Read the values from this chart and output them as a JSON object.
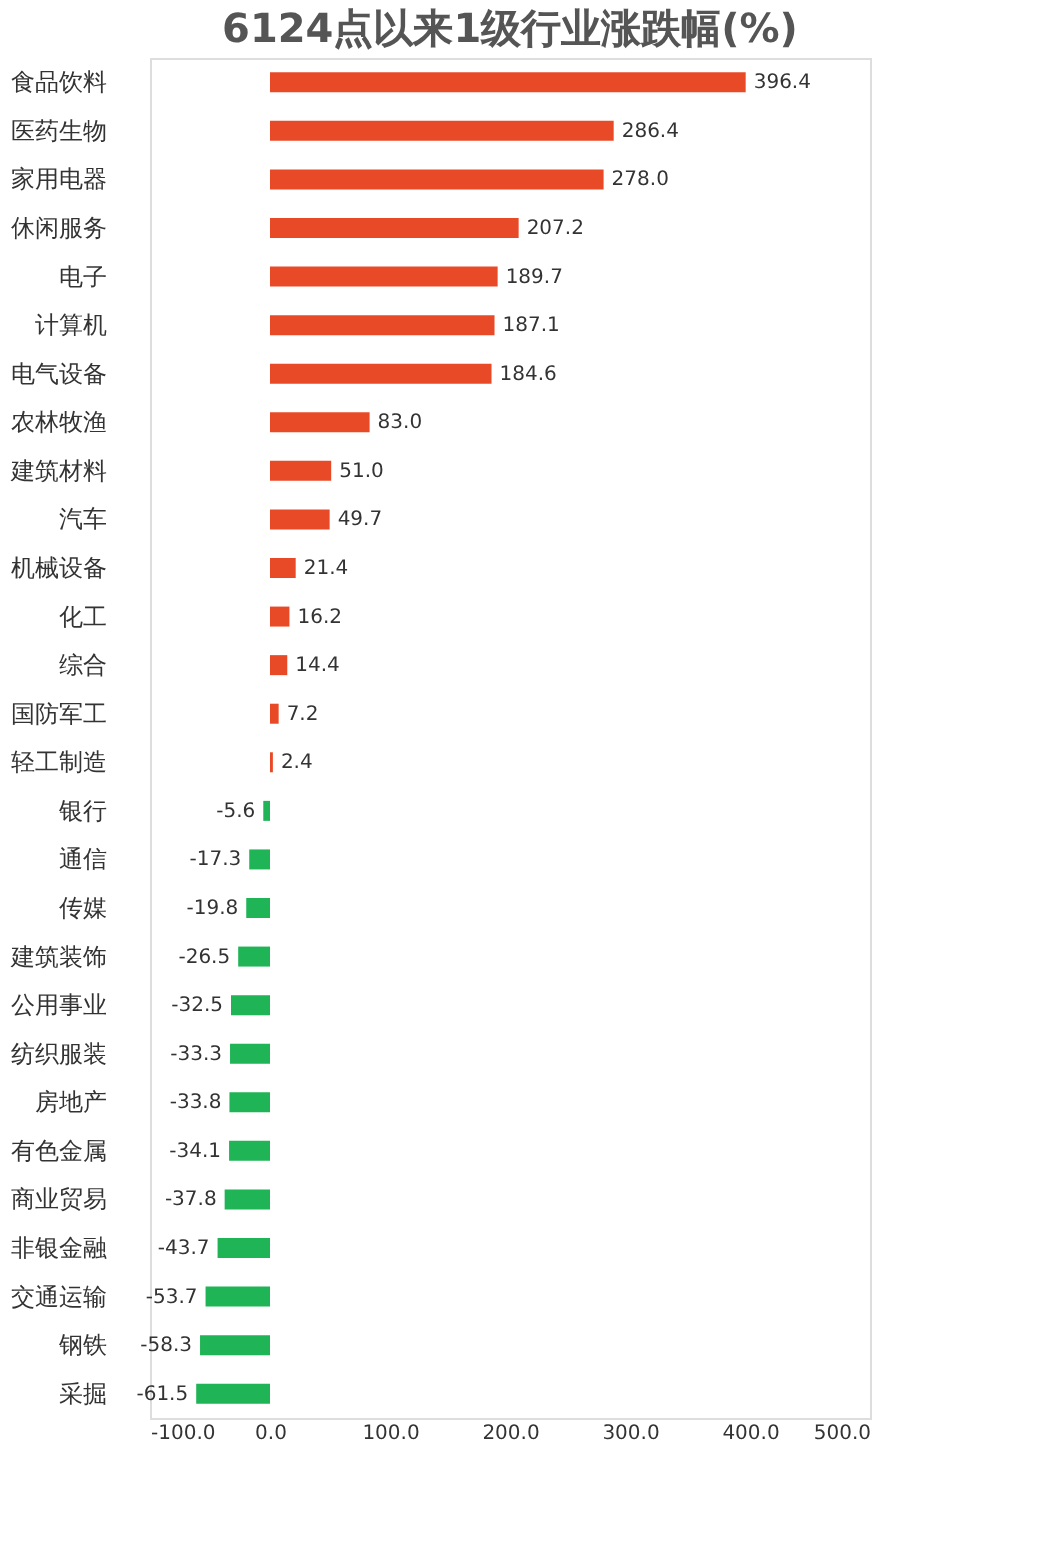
{
  "chart_data": {
    "type": "bar",
    "orientation": "horizontal",
    "title": "6124点以来1级行业涨跌幅(%)",
    "categories": [
      "食品饮料",
      "医药生物",
      "家用电器",
      "休闲服务",
      "电子",
      "计算机",
      "电气设备",
      "农林牧渔",
      "建筑材料",
      "汽车",
      "机械设备",
      "化工",
      "综合",
      "国防军工",
      "轻工制造",
      "银行",
      "通信",
      "传媒",
      "建筑装饰",
      "公用事业",
      "纺织服装",
      "房地产",
      "有色金属",
      "商业贸易",
      "非银金融",
      "交通运输",
      "钢铁",
      "采掘"
    ],
    "values": [
      396.4,
      286.4,
      278.0,
      207.2,
      189.7,
      187.1,
      184.6,
      83.0,
      51.0,
      49.7,
      21.4,
      16.2,
      14.4,
      7.2,
      2.4,
      -5.6,
      -17.3,
      -19.8,
      -26.5,
      -32.5,
      -33.3,
      -33.8,
      -34.1,
      -37.8,
      -43.7,
      -53.7,
      -58.3,
      -61.5
    ],
    "value_labels": [
      "396.4",
      "286.4",
      "278.0",
      "207.2",
      "189.7",
      "187.1",
      "184.6",
      "83.0",
      "51.0",
      "49.7",
      "21.4",
      "16.2",
      "14.4",
      "7.2",
      "2.4",
      "-5.6",
      "-17.3",
      "-19.8",
      "-26.5",
      "-32.5",
      "-33.3",
      "-33.8",
      "-34.1",
      "-37.8",
      "-43.7",
      "-53.7",
      "-58.3",
      "-61.5"
    ],
    "colors": [
      "#e84a27",
      "#e84a27",
      "#e84a27",
      "#e84a27",
      "#e84a27",
      "#e84a27",
      "#e84a27",
      "#e84a27",
      "#e84a27",
      "#e84a27",
      "#e84a27",
      "#e84a27",
      "#e84a27",
      "#e84a27",
      "#e84a27",
      "#1fb456",
      "#1fb456",
      "#1fb456",
      "#1fb456",
      "#1fb456",
      "#1fb456",
      "#1fb456",
      "#1fb456",
      "#1fb456",
      "#1fb456",
      "#1fb456",
      "#1fb456",
      "#1fb456"
    ],
    "xlim": [
      -100,
      500
    ],
    "xticks": [
      {
        "value": -100,
        "label": "-100.0"
      },
      {
        "value": 0,
        "label": "0.0"
      },
      {
        "value": 100,
        "label": "100.0"
      },
      {
        "value": 200,
        "label": "200.0"
      },
      {
        "value": 300,
        "label": "300.0"
      },
      {
        "value": 400,
        "label": "400.0"
      },
      {
        "value": 500,
        "label": "500.0"
      }
    ],
    "grid": false
  }
}
